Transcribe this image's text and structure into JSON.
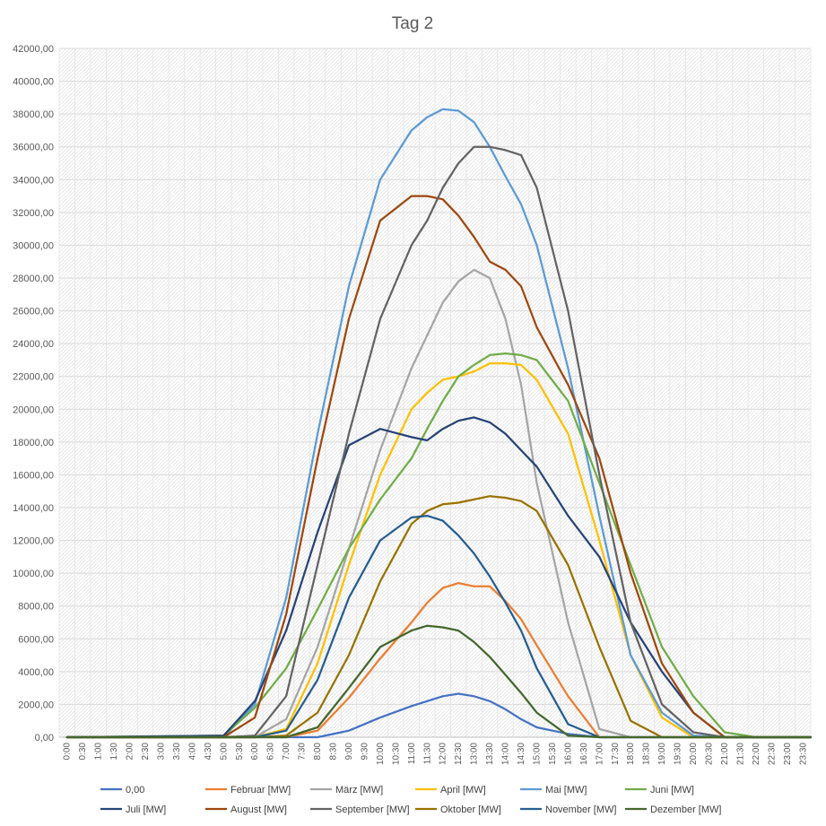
{
  "chart_data": {
    "type": "line",
    "title": "Tag 2",
    "ylim": [
      0,
      42000
    ],
    "y_tick_step": 2000,
    "y_tick_labels": [
      "0,00",
      "2000,00",
      "4000,00",
      "6000,00",
      "8000,00",
      "10000,00",
      "12000,00",
      "14000,00",
      "16000,00",
      "18000,00",
      "20000,00",
      "22000,00",
      "24000,00",
      "26000,00",
      "28000,00",
      "30000,00",
      "32000,00",
      "34000,00",
      "36000,00",
      "38000,00",
      "40000,00",
      "42000,00"
    ],
    "x_tick_labels": [
      "0:00",
      "0:30",
      "1:00",
      "1:30",
      "2:00",
      "2:30",
      "3:00",
      "3:30",
      "4:00",
      "4:30",
      "5:00",
      "5:30",
      "6:00",
      "6:30",
      "7:00",
      "7:30",
      "8:00",
      "8:30",
      "9:00",
      "9:30",
      "10:00",
      "10:30",
      "11:00",
      "11:30",
      "12:00",
      "12:30",
      "13:00",
      "13:30",
      "14:00",
      "14:30",
      "15:00",
      "15:30",
      "16:00",
      "16:30",
      "17:00",
      "17:30",
      "18:00",
      "18:30",
      "19:00",
      "19:30",
      "20:00",
      "20:30",
      "21:00",
      "21:30",
      "22:00",
      "22:30",
      "23:00",
      "23:30"
    ],
    "x_hours": [
      0,
      5.0,
      6.0,
      7.0,
      8.0,
      9.0,
      10.0,
      11.0,
      11.5,
      12.0,
      12.5,
      13.0,
      13.5,
      14.0,
      14.5,
      15.0,
      16.0,
      17.0,
      18.0,
      19.0,
      20.0,
      21.0,
      22.0,
      23.75
    ],
    "grid": true,
    "legend_position": "bottom",
    "series": [
      {
        "name": "0,00",
        "color": "#4472C4",
        "values": [
          0,
          0,
          0,
          0,
          0,
          400,
          1200,
          1900,
          2200,
          2500,
          2650,
          2500,
          2200,
          1700,
          1100,
          600,
          200,
          0,
          0,
          0,
          0,
          0,
          0,
          0
        ]
      },
      {
        "name": "Februar [MW]",
        "color": "#ED7D31",
        "values": [
          0,
          0,
          0,
          0,
          400,
          2400,
          4800,
          7000,
          8200,
          9100,
          9400,
          9200,
          9200,
          8300,
          7200,
          5600,
          2500,
          0,
          0,
          0,
          0,
          0,
          0,
          0
        ]
      },
      {
        "name": "März [MW]",
        "color": "#A5A5A5",
        "values": [
          0,
          0,
          0,
          1100,
          5500,
          11500,
          17500,
          22500,
          24500,
          26500,
          27800,
          28500,
          28000,
          25500,
          21500,
          15500,
          7000,
          500,
          0,
          0,
          0,
          0,
          0,
          0
        ]
      },
      {
        "name": "April [MW]",
        "color": "#FFC000",
        "values": [
          0,
          0,
          0,
          500,
          4500,
          10500,
          16000,
          20000,
          21000,
          21800,
          22000,
          22300,
          22800,
          22800,
          22700,
          21800,
          18500,
          12000,
          5000,
          1200,
          0,
          0,
          0,
          0
        ]
      },
      {
        "name": "Mai [MW]",
        "color": "#5B9BD5",
        "values": [
          0,
          0,
          2000,
          8500,
          18500,
          27500,
          34000,
          37000,
          37800,
          38300,
          38200,
          37500,
          36000,
          34200,
          32500,
          30000,
          22500,
          13500,
          5000,
          1500,
          100,
          0,
          0,
          0
        ]
      },
      {
        "name": "Juni [MW]",
        "color": "#70AD47",
        "values": [
          0,
          100,
          1800,
          4200,
          7800,
          11500,
          14500,
          17000,
          18800,
          20500,
          22000,
          22700,
          23300,
          23400,
          23300,
          23000,
          20500,
          15500,
          10500,
          5500,
          2500,
          300,
          0,
          0
        ]
      },
      {
        "name": "Juli [MW]",
        "color": "#264478",
        "values": [
          0,
          100,
          2200,
          6500,
          12500,
          17800,
          18800,
          18300,
          18100,
          18800,
          19300,
          19500,
          19200,
          18500,
          17500,
          16500,
          13500,
          11000,
          7000,
          4000,
          1500,
          0,
          0,
          0
        ]
      },
      {
        "name": "August [MW]",
        "color": "#9E480E",
        "values": [
          0,
          0,
          1200,
          7500,
          17000,
          25500,
          31500,
          33000,
          33000,
          32800,
          31800,
          30500,
          29000,
          28500,
          27500,
          25000,
          21500,
          17000,
          10000,
          4500,
          1500,
          0,
          0,
          0
        ]
      },
      {
        "name": "September [MW]",
        "color": "#636363",
        "values": [
          0,
          0,
          100,
          2500,
          10500,
          18500,
          25500,
          30000,
          31500,
          33500,
          35000,
          36000,
          36000,
          35800,
          35500,
          33500,
          26000,
          16000,
          7000,
          2000,
          300,
          0,
          0,
          0
        ]
      },
      {
        "name": "Oktober [MW]",
        "color": "#997300",
        "values": [
          0,
          0,
          0,
          100,
          1500,
          5000,
          9500,
          13000,
          13800,
          14200,
          14300,
          14500,
          14700,
          14600,
          14400,
          13800,
          10500,
          5500,
          1000,
          0,
          0,
          0,
          0,
          0
        ]
      },
      {
        "name": "November [MW]",
        "color": "#255E91",
        "values": [
          0,
          0,
          0,
          400,
          3500,
          8500,
          12000,
          13400,
          13500,
          13200,
          12300,
          11200,
          9800,
          8200,
          6500,
          4200,
          800,
          0,
          0,
          0,
          0,
          0,
          0,
          0
        ]
      },
      {
        "name": "Dezember [MW]",
        "color": "#43682B",
        "values": [
          0,
          0,
          0,
          0,
          600,
          3000,
          5500,
          6500,
          6800,
          6700,
          6500,
          5800,
          4900,
          3800,
          2700,
          1500,
          100,
          0,
          0,
          0,
          0,
          0,
          0,
          0
        ]
      }
    ]
  }
}
